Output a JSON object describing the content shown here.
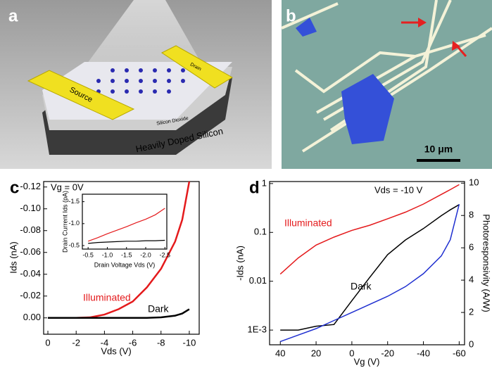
{
  "images": {
    "a": {
      "label": "a",
      "source": "Source",
      "drain": "Drain",
      "oxide": "Silicon Dioxide",
      "substrate": "Heavily Doped Silicon"
    },
    "b": {
      "label": "b",
      "scale_bar": "10 μm"
    }
  },
  "chart_data": [
    {
      "type": "line",
      "panel_label": "c",
      "annotation": "Vg = 0V",
      "x_label": "Vds (V)",
      "y_label": "Ids (nA)",
      "x": [
        0,
        -1,
        -2,
        -3,
        -4,
        -5,
        -6,
        -7,
        -8,
        -9,
        -9.5,
        -10
      ],
      "series": [
        {
          "name": "Illuminated",
          "color": "#e41a1c",
          "values": [
            0,
            0,
            0,
            -0.0005,
            -0.003,
            -0.008,
            -0.015,
            -0.028,
            -0.045,
            -0.07,
            -0.09,
            -0.125
          ]
        },
        {
          "name": "Dark",
          "color": "#000000",
          "values": [
            0,
            0,
            0,
            0,
            0,
            0,
            0,
            0,
            -0.0005,
            -0.002,
            -0.004,
            -0.008
          ]
        }
      ],
      "xlim": [
        0.3,
        -10.7
      ],
      "xticks": [
        0,
        -2,
        -4,
        -6,
        -8,
        -10
      ],
      "ylim": [
        0.015,
        -0.125
      ],
      "yticks": [
        {
          "value": 0,
          "label": "0.00"
        },
        -0.02,
        -0.04,
        -0.06,
        -0.08,
        {
          "value": -0.1,
          "label": "-0.10"
        },
        -0.12
      ]
    },
    {
      "type": "line",
      "x_label": "Drain Voltage Vds (V)",
      "y_label": "Drain Current Ids (pA)",
      "x": [
        -0.5,
        -0.75,
        -1,
        -1.25,
        -1.5,
        -1.75,
        -2,
        -2.25,
        -2.5
      ],
      "series": [
        {
          "color": "#e41a1c",
          "values": [
            -0.6,
            -0.68,
            -0.77,
            -0.85,
            -0.93,
            -1.02,
            -1.1,
            -1.2,
            -1.35
          ]
        },
        {
          "color": "#000000",
          "values": [
            -0.55,
            -0.57,
            -0.58,
            -0.59,
            -0.6,
            -0.6,
            -0.61,
            -0.61,
            -0.62
          ]
        }
      ],
      "xlim": [
        -0.35,
        -2.55
      ],
      "xticks": [
        -0.5,
        {
          "value": -1,
          "label": "-1.0"
        },
        -1.5,
        {
          "value": -2,
          "label": "-2.0"
        },
        -2.5
      ],
      "ylim": [
        -0.42,
        -1.67
      ],
      "yticks": [
        -1.5,
        {
          "value": -1,
          "label": "-1.0"
        },
        -0.5
      ]
    },
    {
      "type": "line",
      "panel_label": "d",
      "annotation": "Vds = -10 V",
      "x_label": "Vg (V)",
      "y_label": "-Ids (nA)",
      "y2_label": "Photoresponsivity (A/W)",
      "x": [
        40,
        30,
        20,
        10,
        0,
        -10,
        -20,
        -30,
        -40,
        -50,
        -55,
        -60
      ],
      "series": [
        {
          "name": "Illuminated",
          "color": "#e41a1c",
          "values": [
            0.014,
            0.03,
            0.055,
            0.08,
            0.11,
            0.14,
            0.19,
            0.26,
            0.38,
            0.6,
            0.75,
            0.95
          ]
        },
        {
          "name": "Dark",
          "color": "#000000",
          "values": [
            0.001,
            0.001,
            0.0012,
            0.0013,
            0.004,
            0.012,
            0.035,
            0.07,
            0.12,
            0.22,
            0.29,
            0.37
          ]
        },
        {
          "color": "#1f2fd0",
          "axis": "y2",
          "values": [
            0.2,
            0.6,
            1.0,
            1.5,
            2.0,
            2.5,
            3.0,
            3.6,
            4.4,
            5.5,
            6.5,
            8.7
          ]
        }
      ],
      "xlim": [
        46,
        -63
      ],
      "xticks": [
        40,
        20,
        0,
        -20,
        -40,
        -60
      ],
      "ylog": true,
      "ylim": [
        0.0005,
        1.1
      ],
      "yticks": [
        {
          "value": 0.001,
          "label": "1E-3"
        },
        0.01,
        0.1,
        1
      ],
      "y2lim": [
        0,
        10.1
      ],
      "y2ticks": [
        0,
        2,
        4,
        6,
        8,
        10
      ]
    }
  ]
}
